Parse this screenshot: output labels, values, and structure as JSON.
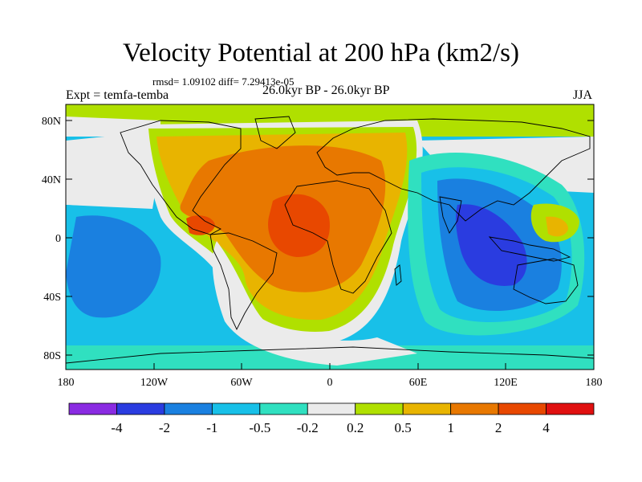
{
  "title": "Velocity Potential at 200 hPa (km2/s)",
  "stats": "rmsd= 1.09102 diff= 7.29413e-05",
  "left_label": "Expt = temfa-temba",
  "center_label": "26.0kyr BP - 26.0kyr BP",
  "right_label": "JJA",
  "y_ticks": [
    "80N",
    "40N",
    "0",
    "40S",
    "80S"
  ],
  "x_ticks": [
    "180",
    "120W",
    "60W",
    "0",
    "60E",
    "120E",
    "180"
  ],
  "colorbar": {
    "labels": [
      "-4",
      "-2",
      "-1",
      "-0.5",
      "-0.2",
      "0.2",
      "0.5",
      "1",
      "2",
      "4"
    ],
    "colors": [
      "#8a2be2",
      "#2a3ce0",
      "#1a80e0",
      "#18c0e8",
      "#30e0c0",
      "#ebebeb",
      "#b0e000",
      "#e8b400",
      "#e87800",
      "#e84800",
      "#e01010"
    ]
  }
}
